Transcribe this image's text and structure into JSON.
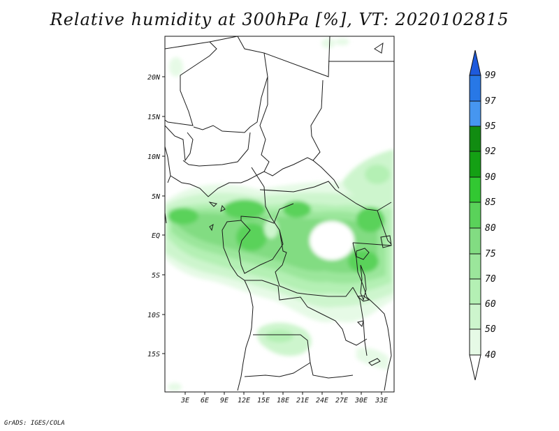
{
  "title": "Relative humidity at 300hPa [%], VT: 2020102815",
  "credit": "GrADS: IGES/COLA",
  "map": {
    "variable": "Relative humidity",
    "level": "300hPa",
    "units": "%",
    "valid_time": "2020102815",
    "lon_ticks": [
      "3E",
      "6E",
      "9E",
      "12E",
      "15E",
      "18E",
      "21E",
      "24E",
      "27E",
      "30E",
      "33E"
    ],
    "lat_ticks": [
      "20N",
      "15N",
      "10N",
      "5N",
      "EQ",
      "5S",
      "10S",
      "15S"
    ]
  },
  "colorbar": {
    "levels": [
      "40",
      "50",
      "60",
      "70",
      "75",
      "80",
      "85",
      "90",
      "92",
      "95",
      "97",
      "99"
    ],
    "colors": [
      "#ffffff",
      "#e6fae6",
      "#cdf5cd",
      "#b4f0b4",
      "#9be69b",
      "#82dc82",
      "#5ad25a",
      "#32c832",
      "#14a014",
      "#118c11",
      "#4696f0",
      "#2878e6",
      "#1e5adc"
    ]
  }
}
